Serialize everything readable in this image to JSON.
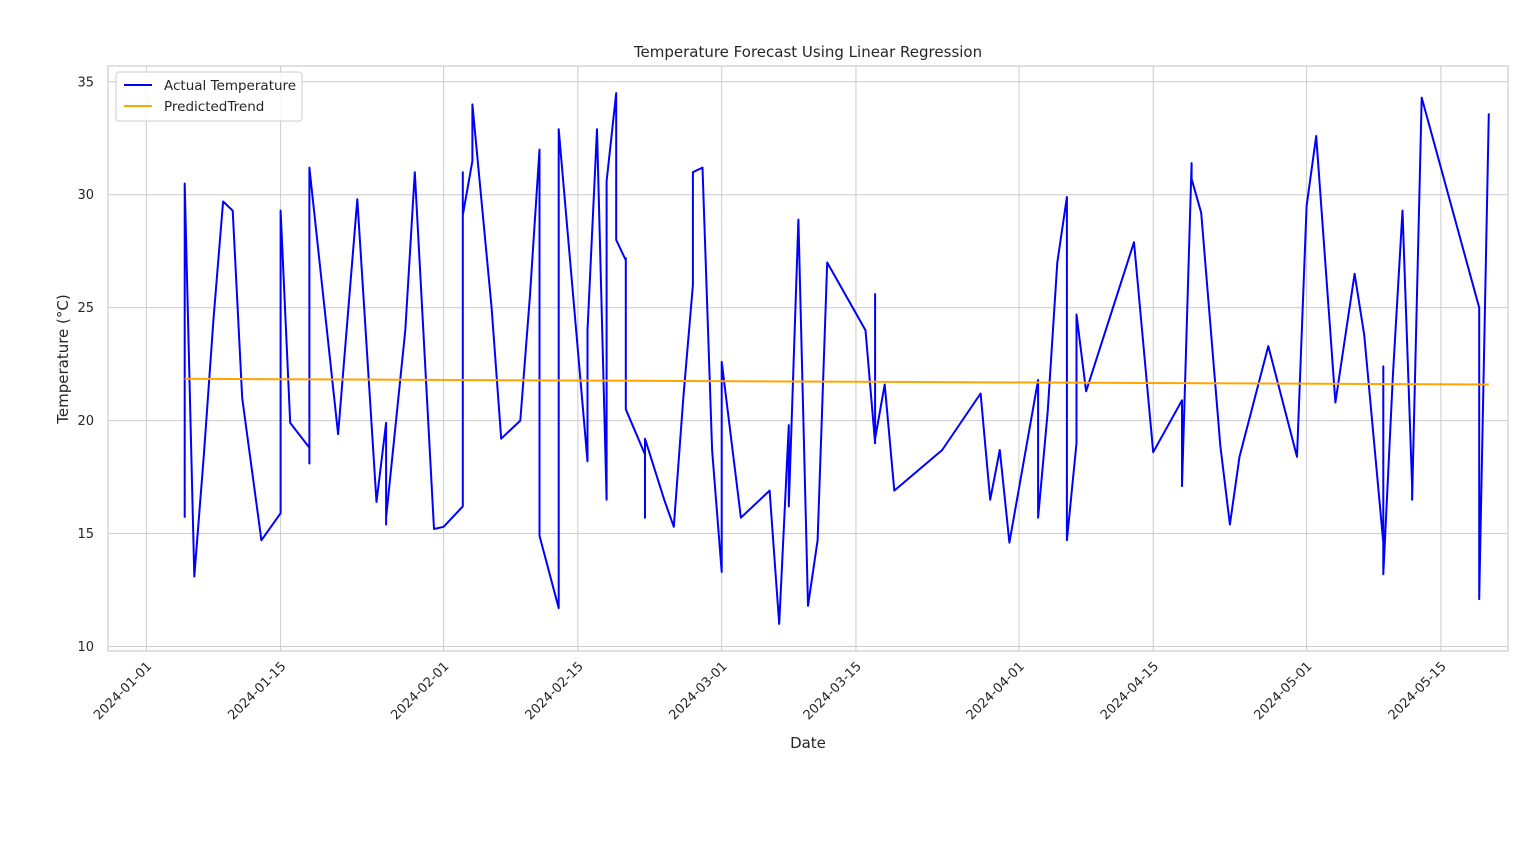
{
  "chart_data": {
    "type": "line",
    "title": "Temperature Forecast Using Linear Regression",
    "xlabel": "Date",
    "ylabel": "Temperature (°C)",
    "xlim": [
      "2023-12-28",
      "2024-05-22"
    ],
    "ylim": [
      9.8,
      35.7
    ],
    "grid": true,
    "legend_position": "top-left",
    "x_ticks": [
      "2024-01-01",
      "2024-01-15",
      "2024-02-01",
      "2024-02-15",
      "2024-03-01",
      "2024-03-15",
      "2024-04-01",
      "2024-04-15",
      "2024-05-01",
      "2024-05-15"
    ],
    "y_ticks": [
      10,
      15,
      20,
      25,
      30,
      35
    ],
    "series": [
      {
        "name": "Actual Temperature",
        "color": "#0000ff",
        "points": [
          [
            "2024-01-05",
            15.7
          ],
          [
            "2024-01-05",
            30.5
          ],
          [
            "2024-01-06",
            13.1
          ],
          [
            "2024-01-07",
            18.5
          ],
          [
            "2024-01-08",
            24.5
          ],
          [
            "2024-01-09",
            29.7
          ],
          [
            "2024-01-10",
            29.3
          ],
          [
            "2024-01-11",
            21.0
          ],
          [
            "2024-01-13",
            14.7
          ],
          [
            "2024-01-15",
            15.9
          ],
          [
            "2024-01-15",
            29.3
          ],
          [
            "2024-01-16",
            19.9
          ],
          [
            "2024-01-18",
            18.8
          ],
          [
            "2024-01-18",
            18.1
          ],
          [
            "2024-01-18",
            31.2
          ],
          [
            "2024-01-21",
            19.4
          ],
          [
            "2024-01-23",
            29.8
          ],
          [
            "2024-01-25",
            16.4
          ],
          [
            "2024-01-26",
            19.9
          ],
          [
            "2024-01-26",
            15.4
          ],
          [
            "2024-01-26",
            15.7
          ],
          [
            "2024-01-28",
            24.0
          ],
          [
            "2024-01-29",
            31.0
          ],
          [
            "2024-01-31",
            15.2
          ],
          [
            "2024-02-01",
            15.3
          ],
          [
            "2024-02-03",
            16.2
          ],
          [
            "2024-02-03",
            31.0
          ],
          [
            "2024-02-03",
            29.1
          ],
          [
            "2024-02-04",
            31.5
          ],
          [
            "2024-02-04",
            34.0
          ],
          [
            "2024-02-06",
            25.0
          ],
          [
            "2024-02-07",
            19.2
          ],
          [
            "2024-02-09",
            20.0
          ],
          [
            "2024-02-10",
            25.5
          ],
          [
            "2024-02-11",
            32.0
          ],
          [
            "2024-02-11",
            14.9
          ],
          [
            "2024-02-13",
            11.7
          ],
          [
            "2024-02-13",
            23.4
          ],
          [
            "2024-02-13",
            23.3
          ],
          [
            "2024-02-13",
            32.9
          ],
          [
            "2024-02-14",
            28.0
          ],
          [
            "2024-02-16",
            18.2
          ],
          [
            "2024-02-16",
            24.0
          ],
          [
            "2024-02-17",
            32.9
          ],
          [
            "2024-02-18",
            16.5
          ],
          [
            "2024-02-18",
            30.6
          ],
          [
            "2024-02-19",
            34.5
          ],
          [
            "2024-02-19",
            28.0
          ],
          [
            "2024-02-20",
            27.1
          ],
          [
            "2024-02-20",
            27.2
          ],
          [
            "2024-02-20",
            20.5
          ],
          [
            "2024-02-22",
            18.5
          ],
          [
            "2024-02-22",
            15.7
          ],
          [
            "2024-02-22",
            19.2
          ],
          [
            "2024-02-24",
            16.5
          ],
          [
            "2024-02-25",
            15.3
          ],
          [
            "2024-02-26",
            21.0
          ],
          [
            "2024-02-27",
            26.0
          ],
          [
            "2024-02-27",
            31.0
          ],
          [
            "2024-02-28",
            31.2
          ],
          [
            "2024-02-29",
            18.7
          ],
          [
            "2024-03-01",
            13.3
          ],
          [
            "2024-03-01",
            22.6
          ],
          [
            "2024-03-03",
            15.7
          ],
          [
            "2024-03-06",
            16.9
          ],
          [
            "2024-03-07",
            11.0
          ],
          [
            "2024-03-08",
            19.8
          ],
          [
            "2024-03-08",
            16.2
          ],
          [
            "2024-03-09",
            28.9
          ],
          [
            "2024-03-10",
            11.8
          ],
          [
            "2024-03-11",
            14.7
          ],
          [
            "2024-03-12",
            27.0
          ],
          [
            "2024-03-16",
            24.0
          ],
          [
            "2024-03-17",
            19.0
          ],
          [
            "2024-03-17",
            25.6
          ],
          [
            "2024-03-17",
            19.2
          ],
          [
            "2024-03-18",
            21.6
          ],
          [
            "2024-03-19",
            16.9
          ],
          [
            "2024-03-24",
            18.7
          ],
          [
            "2024-03-28",
            21.2
          ],
          [
            "2024-03-29",
            16.5
          ],
          [
            "2024-03-30",
            18.7
          ],
          [
            "2024-03-31",
            14.6
          ],
          [
            "2024-04-03",
            21.8
          ],
          [
            "2024-04-03",
            15.7
          ],
          [
            "2024-04-04",
            20.4
          ],
          [
            "2024-04-05",
            27.0
          ],
          [
            "2024-04-06",
            29.9
          ],
          [
            "2024-04-06",
            17.6
          ],
          [
            "2024-04-06",
            14.7
          ],
          [
            "2024-04-07",
            19.0
          ],
          [
            "2024-04-07",
            24.7
          ],
          [
            "2024-04-08",
            21.3
          ],
          [
            "2024-04-13",
            27.9
          ],
          [
            "2024-04-15",
            18.6
          ],
          [
            "2024-04-18",
            20.9
          ],
          [
            "2024-04-18",
            17.1
          ],
          [
            "2024-04-19",
            31.4
          ],
          [
            "2024-04-19",
            30.7
          ],
          [
            "2024-04-20",
            29.2
          ],
          [
            "2024-04-22",
            18.9
          ],
          [
            "2024-04-23",
            15.4
          ],
          [
            "2024-04-24",
            18.4
          ],
          [
            "2024-04-27",
            23.3
          ],
          [
            "2024-04-30",
            18.4
          ],
          [
            "2024-05-01",
            29.5
          ],
          [
            "2024-05-02",
            32.6
          ],
          [
            "2024-05-04",
            20.8
          ],
          [
            "2024-05-06",
            26.5
          ],
          [
            "2024-05-07",
            23.8
          ],
          [
            "2024-05-09",
            14.6
          ],
          [
            "2024-05-09",
            22.4
          ],
          [
            "2024-05-09",
            13.2
          ],
          [
            "2024-05-10",
            22.0
          ],
          [
            "2024-05-11",
            29.3
          ],
          [
            "2024-05-12",
            17.1
          ],
          [
            "2024-05-12",
            16.5
          ],
          [
            "2024-05-13",
            34.3
          ],
          [
            "2024-05-19",
            25.0
          ],
          [
            "2024-05-19",
            18.5
          ],
          [
            "2024-05-19",
            16.2
          ],
          [
            "2024-05-19",
            12.1
          ],
          [
            "2024-05-20",
            33.6
          ]
        ]
      },
      {
        "name": "PredictedTrend",
        "color": "#ffa500",
        "points": [
          [
            "2024-01-05",
            21.85
          ],
          [
            "2024-05-20",
            21.6
          ]
        ]
      }
    ]
  }
}
